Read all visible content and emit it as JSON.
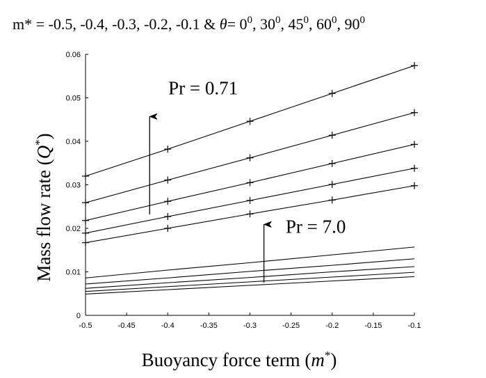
{
  "chart_data": {
    "type": "line",
    "title": {
      "prefix": "m* = -0.5, -0.4, -0.3, -0.2, -0.1 & ",
      "theta": "θ",
      "angles": [
        "0",
        "30",
        "45",
        "60",
        "90"
      ],
      "degree_superscript": "0"
    },
    "xlabel": {
      "text": "Buoyancy force term (",
      "symbol": "m",
      "sup": "*",
      "close": ")"
    },
    "ylabel": {
      "text": "Mass flow rate (",
      "symbol": "Q",
      "sup": "*",
      "close": ")"
    },
    "xlim": [
      -0.5,
      -0.1
    ],
    "ylim": [
      0,
      0.06
    ],
    "x_ticks": [
      -0.5,
      -0.45,
      -0.4,
      -0.35,
      -0.3,
      -0.25,
      -0.2,
      -0.15,
      -0.1
    ],
    "x_tick_labels": [
      "-0.5",
      "-0.45",
      "-0.4",
      "-0.35",
      "-0.3",
      "-0.25",
      "-0.2",
      "-0.15",
      "-0.1"
    ],
    "y_ticks": [
      0,
      0.01,
      0.02,
      0.03,
      0.04,
      0.05,
      0.06
    ],
    "y_tick_labels": [
      "0",
      "0.01",
      "0.02",
      "0.03",
      "0.04",
      "0.05",
      "0.06"
    ],
    "x": [
      -0.5,
      -0.4,
      -0.3,
      -0.2,
      -0.1
    ],
    "grid": false,
    "series": [
      {
        "group": "Pr = 0.71",
        "marker": "+",
        "values": [
          0.032,
          0.0382,
          0.0446,
          0.051,
          0.0574
        ]
      },
      {
        "group": "Pr = 0.71",
        "marker": "+",
        "values": [
          0.0259,
          0.0311,
          0.0362,
          0.0414,
          0.0466
        ]
      },
      {
        "group": "Pr = 0.71",
        "marker": "+",
        "values": [
          0.0218,
          0.0262,
          0.0305,
          0.0349,
          0.0393
        ]
      },
      {
        "group": "Pr = 0.71",
        "marker": "+",
        "values": [
          0.0189,
          0.0227,
          0.0264,
          0.0301,
          0.0338
        ]
      },
      {
        "group": "Pr = 0.71",
        "marker": "+",
        "values": [
          0.0167,
          0.02,
          0.0233,
          0.0265,
          0.0298
        ]
      },
      {
        "group": "Pr = 7.0",
        "marker": "none",
        "values": [
          0.0086,
          0.0104,
          0.0121,
          0.0139,
          0.0157
        ]
      },
      {
        "group": "Pr = 7.0",
        "marker": "none",
        "values": [
          0.0072,
          0.0086,
          0.0101,
          0.0115,
          0.013
        ]
      },
      {
        "group": "Pr = 7.0",
        "marker": "none",
        "values": [
          0.0062,
          0.0075,
          0.0087,
          0.01,
          0.0112
        ]
      },
      {
        "group": "Pr = 7.0",
        "marker": "none",
        "values": [
          0.0055,
          0.0066,
          0.0077,
          0.0088,
          0.0099
        ]
      },
      {
        "group": "Pr = 7.0",
        "marker": "none",
        "values": [
          0.0049,
          0.0059,
          0.0069,
          0.0079,
          0.0089
        ]
      }
    ],
    "annotations": [
      {
        "text": "Pr = 0.71",
        "label_at": {
          "x": -0.357,
          "y": 0.0508
        },
        "arrow_from": {
          "x": -0.422,
          "y": 0.0232
        },
        "arrow_to": {
          "x": -0.422,
          "y": 0.0457
        }
      },
      {
        "text": "Pr = 7.0",
        "label_at": {
          "x": -0.22,
          "y": 0.019
        },
        "arrow_from": {
          "x": -0.283,
          "y": 0.0075
        },
        "arrow_to": {
          "x": -0.283,
          "y": 0.0209
        }
      }
    ]
  }
}
